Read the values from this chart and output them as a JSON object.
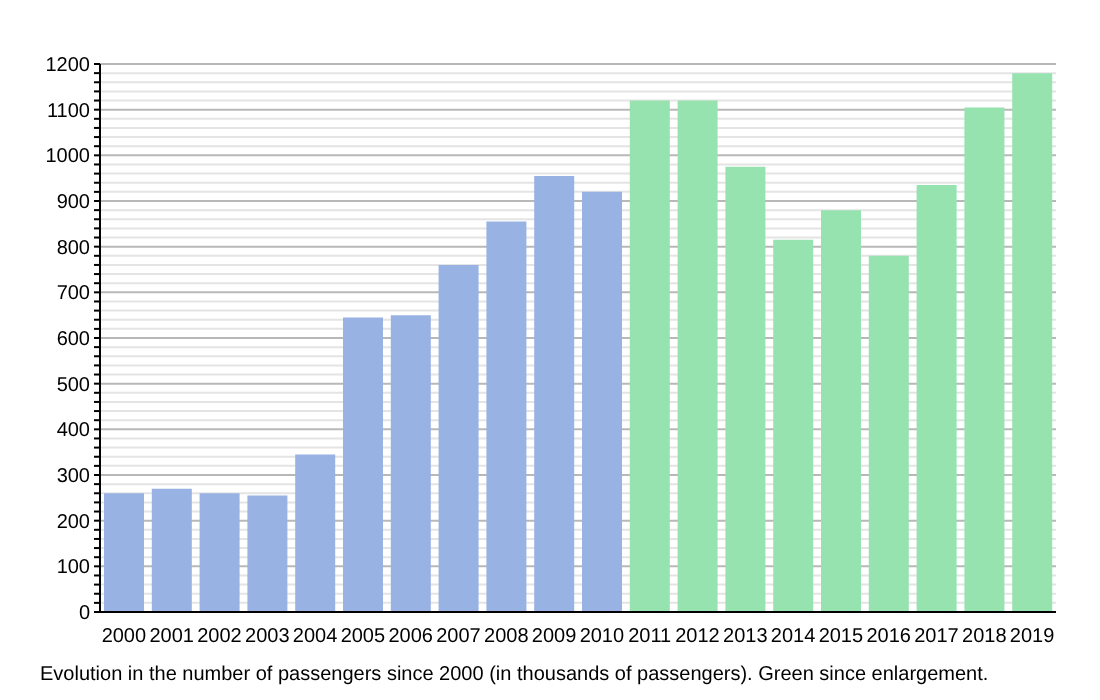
{
  "chart_data": {
    "type": "bar",
    "categories": [
      "2000",
      "2001",
      "2002",
      "2003",
      "2004",
      "2005",
      "2006",
      "2007",
      "2008",
      "2009",
      "2010",
      "2011",
      "2012",
      "2013",
      "2014",
      "2015",
      "2016",
      "2017",
      "2018",
      "2019"
    ],
    "values": [
      260,
      270,
      260,
      255,
      345,
      645,
      650,
      760,
      855,
      955,
      920,
      1120,
      1120,
      975,
      815,
      880,
      780,
      935,
      1105,
      1180
    ],
    "colors": [
      "#98b2e3",
      "#98b2e3",
      "#98b2e3",
      "#98b2e3",
      "#98b2e3",
      "#98b2e3",
      "#98b2e3",
      "#98b2e3",
      "#98b2e3",
      "#98b2e3",
      "#98b2e3",
      "#96e3b0",
      "#96e3b0",
      "#96e3b0",
      "#96e3b0",
      "#96e3b0",
      "#96e3b0",
      "#96e3b0",
      "#96e3b0",
      "#96e3b0"
    ],
    "ylim": [
      0,
      1200
    ],
    "yticks": [
      0,
      {
        "value": 20,
        "label": null
      },
      {
        "value": 40,
        "label": null
      },
      {
        "value": 60,
        "label": null
      },
      {
        "value": 80,
        "label": null
      },
      100,
      {
        "value": 120,
        "label": null
      },
      {
        "value": 140,
        "label": null
      },
      {
        "value": 160,
        "label": null
      },
      {
        "value": 180,
        "label": null
      },
      200,
      {
        "value": 220,
        "label": null
      },
      {
        "value": 240,
        "label": null
      },
      {
        "value": 260,
        "label": null
      },
      {
        "value": 280,
        "label": null
      },
      300,
      {
        "value": 320,
        "label": null
      },
      {
        "value": 340,
        "label": null
      },
      {
        "value": 360,
        "label": null
      },
      {
        "value": 380,
        "label": null
      },
      400,
      {
        "value": 420,
        "label": null
      },
      {
        "value": 440,
        "label": null
      },
      {
        "value": 460,
        "label": null
      },
      {
        "value": 480,
        "label": null
      },
      500,
      {
        "value": 520,
        "label": null
      },
      {
        "value": 540,
        "label": null
      },
      {
        "value": 560,
        "label": null
      },
      {
        "value": 580,
        "label": null
      },
      600,
      {
        "value": 620,
        "label": null
      },
      {
        "value": 640,
        "label": null
      },
      {
        "value": 660,
        "label": null
      },
      {
        "value": 680,
        "label": null
      },
      700,
      {
        "value": 720,
        "label": null
      },
      {
        "value": 740,
        "label": null
      },
      {
        "value": 760,
        "label": null
      },
      {
        "value": 780,
        "label": null
      },
      800,
      {
        "value": 820,
        "label": null
      },
      {
        "value": 840,
        "label": null
      },
      {
        "value": 860,
        "label": null
      },
      {
        "value": 880,
        "label": null
      },
      900,
      {
        "value": 920,
        "label": null
      },
      {
        "value": 940,
        "label": null
      },
      {
        "value": 960,
        "label": null
      },
      {
        "value": 980,
        "label": null
      },
      1000,
      {
        "value": 1020,
        "label": null
      },
      {
        "value": 1040,
        "label": null
      },
      {
        "value": 1060,
        "label": null
      },
      {
        "value": 1080,
        "label": null
      },
      1100,
      {
        "value": 1120,
        "label": null
      },
      {
        "value": 1140,
        "label": null
      },
      {
        "value": 1160,
        "label": null
      },
      {
        "value": 1180,
        "label": null
      },
      1200
    ],
    "grid": "y",
    "annotations": [
      "Evolution in the number of passengers since 2000 (in thousands of passengers). Green since enlargement."
    ]
  }
}
